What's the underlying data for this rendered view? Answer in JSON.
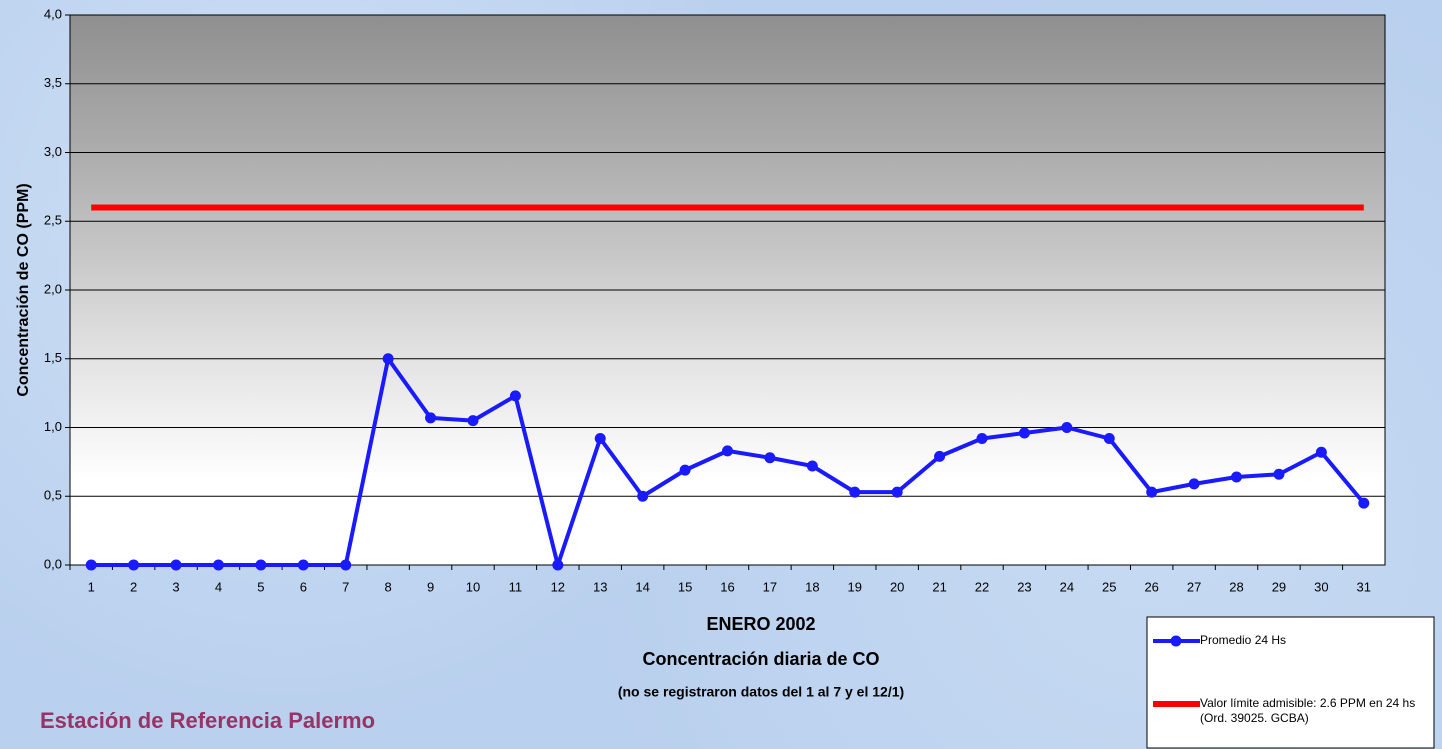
{
  "chart_data": {
    "type": "line",
    "y_label": "Concentración de CO (PPM)",
    "x_title": [
      "ENERO 2002",
      "Concentración diaria de CO",
      "(no se registraron datos del 1 al 7 y el 12/1)"
    ],
    "station": "Estación de Referencia Palermo",
    "categories": [
      "1",
      "2",
      "3",
      "4",
      "5",
      "6",
      "7",
      "8",
      "9",
      "10",
      "11",
      "12",
      "13",
      "14",
      "15",
      "16",
      "17",
      "18",
      "19",
      "20",
      "21",
      "22",
      "23",
      "24",
      "25",
      "26",
      "27",
      "28",
      "29",
      "30",
      "31"
    ],
    "series": [
      {
        "name": "Promedio 24 Hs",
        "color": "#1a1aff",
        "marker": true,
        "values": [
          0,
          0,
          0,
          0,
          0,
          0,
          0,
          1.5,
          1.07,
          1.05,
          1.23,
          0,
          0.92,
          0.5,
          0.69,
          0.83,
          0.78,
          0.72,
          0.53,
          0.53,
          0.79,
          0.92,
          0.96,
          1.0,
          0.92,
          0.53,
          0.59,
          0.64,
          0.66,
          0.82,
          0.45
        ]
      },
      {
        "name": "Valor límite admisible: 2.6 PPM en 24 hs (Ord. 39025. GCBA)",
        "color": "#ff0000",
        "marker": false,
        "values": [
          2.6,
          2.6,
          2.6,
          2.6,
          2.6,
          2.6,
          2.6,
          2.6,
          2.6,
          2.6,
          2.6,
          2.6,
          2.6,
          2.6,
          2.6,
          2.6,
          2.6,
          2.6,
          2.6,
          2.6,
          2.6,
          2.6,
          2.6,
          2.6,
          2.6,
          2.6,
          2.6,
          2.6,
          2.6,
          2.6,
          2.6
        ]
      }
    ],
    "ylim": [
      0,
      4
    ],
    "yticks": [
      {
        "value": 0,
        "label": "0,0"
      },
      {
        "value": 0.5,
        "label": "0,5"
      },
      {
        "value": 1,
        "label": "1,0"
      },
      {
        "value": 1.5,
        "label": "1,5"
      },
      {
        "value": 2,
        "label": "2,0"
      },
      {
        "value": 2.5,
        "label": "2,5"
      },
      {
        "value": 3,
        "label": "3,0"
      },
      {
        "value": 3.5,
        "label": "3,5"
      },
      {
        "value": 4,
        "label": "4,0"
      }
    ],
    "grid": true
  }
}
